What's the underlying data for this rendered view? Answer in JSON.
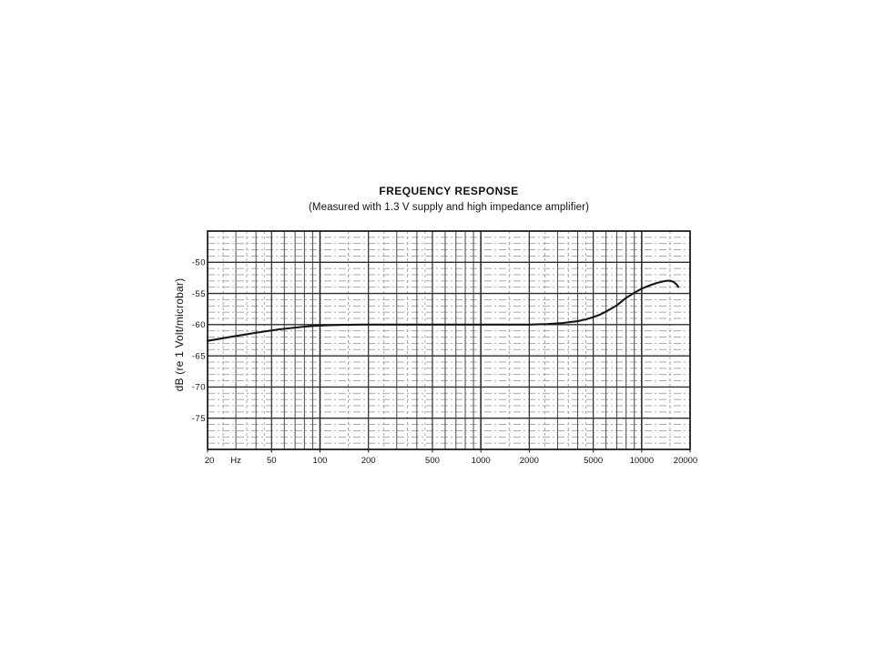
{
  "page": {
    "background_color": "#ffffff"
  },
  "colors": {
    "ink": "#161616",
    "border": "#1f1f1f",
    "grid_major_v": "#262626",
    "grid_strong_v": "#333333",
    "grid_medium_v": "#4a4a4a",
    "grid_light_v": "#979797",
    "grid_major_h": "#2d2d2d",
    "grid_minor_h": "#8c8c8c",
    "label_ink": "#111111"
  },
  "chart_data": {
    "type": "line",
    "title": "FREQUENCY RESPONSE",
    "subtitle": "(Measured with 1.3 V supply and high impedance amplifier)",
    "xlabel": "Hz",
    "ylabel": "dB (re 1 Volt/microbar)",
    "x_scale": "log",
    "xlim": [
      20,
      20000
    ],
    "ylim": [
      -80,
      -45
    ],
    "grid": "on",
    "legend_position": "none",
    "x_ticks": [
      {
        "f": 20,
        "label": "20"
      },
      {
        "f": 50,
        "label": "50"
      },
      {
        "f": 100,
        "label": "100"
      },
      {
        "f": 200,
        "label": "200"
      },
      {
        "f": 500,
        "label": "500"
      },
      {
        "f": 1000,
        "label": "1000"
      },
      {
        "f": 2000,
        "label": "2000"
      },
      {
        "f": 5000,
        "label": "5000"
      },
      {
        "f": 10000,
        "label": "10000"
      },
      {
        "f": 20000,
        "label": "20000"
      }
    ],
    "x_unit_tick": {
      "f": 30,
      "label": "Hz"
    },
    "y_ticks": [
      {
        "db": -50,
        "label": "-50"
      },
      {
        "db": -55,
        "label": "-55"
      },
      {
        "db": -60,
        "label": "-60"
      },
      {
        "db": -65,
        "label": "-65"
      },
      {
        "db": -70,
        "label": "-70"
      },
      {
        "db": -75,
        "label": "-75"
      }
    ],
    "grid_lines": {
      "v_major": [
        100,
        1000,
        10000
      ],
      "v_strong": [
        50,
        200,
        500,
        2000,
        5000
      ],
      "v_medium": [
        30,
        40,
        60,
        70,
        80,
        90,
        300,
        400,
        600,
        700,
        800,
        900,
        3000,
        4000,
        6000,
        7000,
        8000,
        9000
      ],
      "v_light": [
        25,
        35,
        45,
        150,
        250,
        350,
        450,
        1500,
        2500,
        3500,
        4500,
        15000
      ],
      "h_major_step_db": 5,
      "h_minor_step_db": 1
    },
    "series": [
      {
        "name": "frequency-response",
        "color": "#161616",
        "points": [
          [
            20,
            -62.6
          ],
          [
            24,
            -62.25
          ],
          [
            28,
            -61.95
          ],
          [
            34,
            -61.6
          ],
          [
            40,
            -61.3
          ],
          [
            48,
            -61.0
          ],
          [
            56,
            -60.75
          ],
          [
            66,
            -60.55
          ],
          [
            78,
            -60.35
          ],
          [
            92,
            -60.2
          ],
          [
            110,
            -60.1
          ],
          [
            140,
            -60.03
          ],
          [
            180,
            -60.0
          ],
          [
            250,
            -60.0
          ],
          [
            400,
            -60.0
          ],
          [
            700,
            -60.0
          ],
          [
            1200,
            -60.0
          ],
          [
            2000,
            -60.0
          ],
          [
            2600,
            -59.9
          ],
          [
            3200,
            -59.75
          ],
          [
            4000,
            -59.45
          ],
          [
            4500,
            -59.15
          ],
          [
            5000,
            -58.8
          ],
          [
            5500,
            -58.4
          ],
          [
            6000,
            -57.9
          ],
          [
            6500,
            -57.4
          ],
          [
            7000,
            -56.9
          ],
          [
            7500,
            -56.3
          ],
          [
            8000,
            -55.7
          ],
          [
            8500,
            -55.3
          ],
          [
            9000,
            -54.9
          ],
          [
            9500,
            -54.55
          ],
          [
            10000,
            -54.25
          ],
          [
            10500,
            -54.0
          ],
          [
            11000,
            -53.8
          ],
          [
            11500,
            -53.6
          ],
          [
            12000,
            -53.45
          ],
          [
            12500,
            -53.3
          ],
          [
            13000,
            -53.2
          ],
          [
            13500,
            -53.1
          ],
          [
            14000,
            -53.0
          ],
          [
            14500,
            -52.97
          ],
          [
            15000,
            -52.95
          ],
          [
            15800,
            -53.15
          ],
          [
            16400,
            -53.5
          ],
          [
            16900,
            -53.95
          ]
        ]
      }
    ]
  }
}
